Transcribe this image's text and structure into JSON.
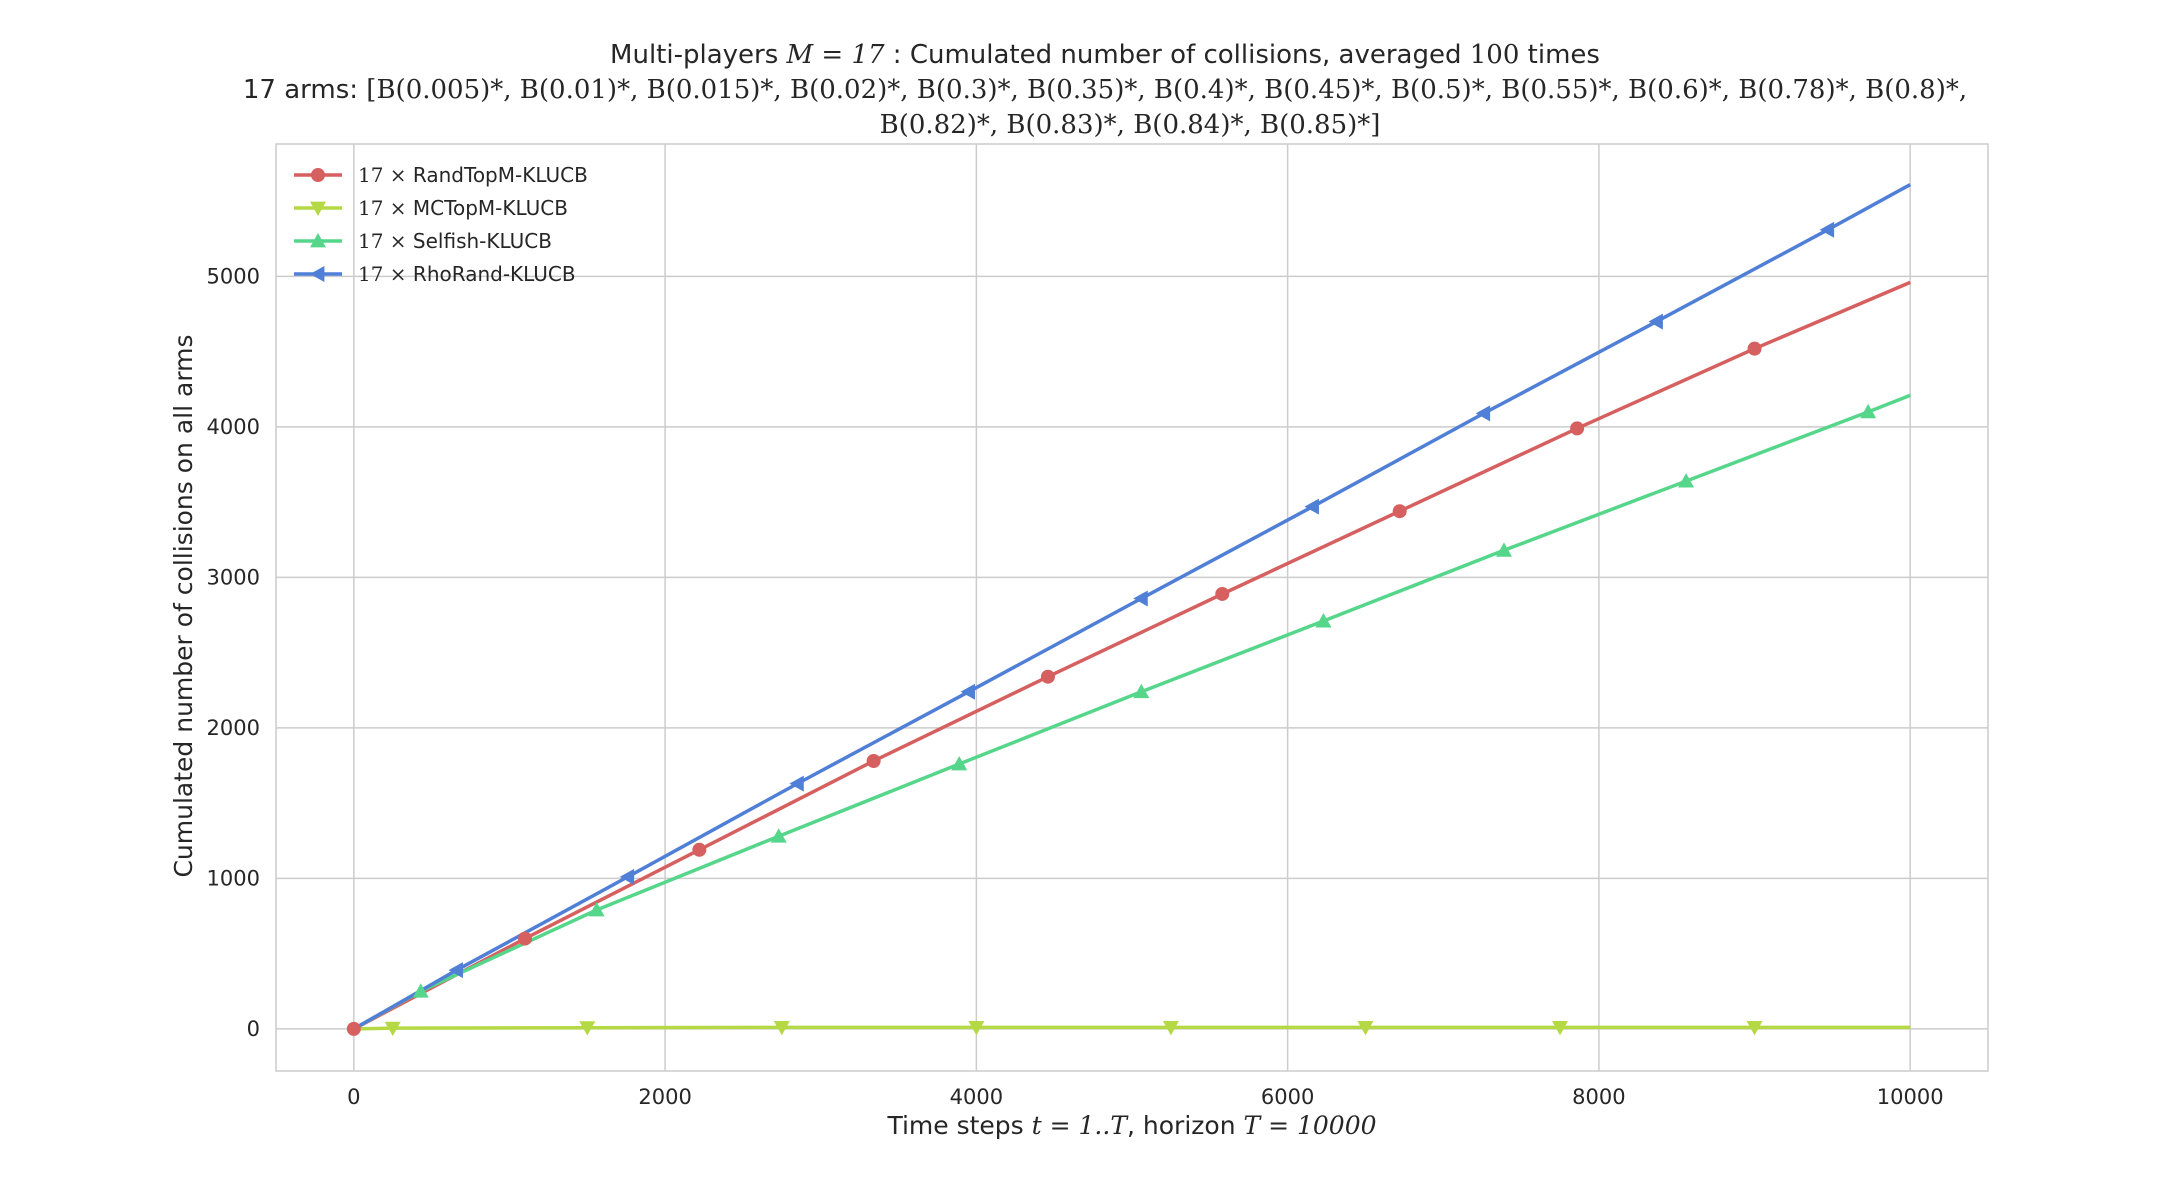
{
  "chart_data": {
    "type": "line",
    "title": "Multi-players M = 17 : Cumulated number of collisions, averaged 100 times",
    "title_parts": {
      "prefix": "Multi-players ",
      "m_expr": "M = 17",
      "middle": " : Cumulated number of collisions, averaged ",
      "n_expr": "100",
      "suffix": " times"
    },
    "subtitle_line1_prefix": "17 arms: ",
    "subtitle_line1_math": "[B(0.005)*, B(0.01)*, B(0.015)*, B(0.02)*, B(0.3)*, B(0.35)*, B(0.4)*, B(0.45)*, B(0.5)*, B(0.55)*, B(0.6)*, B(0.78)*, B(0.8)*,",
    "subtitle_line2_math": "B(0.82)*, B(0.83)*, B(0.84)*, B(0.85)*]",
    "xlabel_prefix": "Time steps ",
    "xlabel_t_expr": "t = 1..T",
    "xlabel_middle": ", horizon ",
    "xlabel_T_expr": "T = 10000",
    "ylabel": "Cumulated number of collisions on all arms",
    "xlim": [
      -500,
      10500
    ],
    "ylim": [
      -280,
      5880
    ],
    "xticks": [
      0,
      2000,
      4000,
      6000,
      8000,
      10000
    ],
    "yticks": [
      0,
      1000,
      2000,
      3000,
      4000,
      5000
    ],
    "grid": true,
    "legend_position": "top-left",
    "legend_prefix": "17 ×",
    "series": [
      {
        "name": "RandTopM-KLUCB",
        "color": "#d65f5f",
        "marker": "circle",
        "x": [
          0,
          1100,
          2220,
          3340,
          4460,
          5580,
          6720,
          7860,
          9000,
          10000
        ],
        "y": [
          0,
          600,
          1190,
          1780,
          2340,
          2890,
          3440,
          3990,
          4520,
          4960
        ]
      },
      {
        "name": "MCTopM-KLUCB",
        "color": "#b5d945",
        "marker": "triangle-down",
        "x": [
          0,
          250,
          1500,
          2750,
          4000,
          5250,
          6500,
          7750,
          9000,
          10000
        ],
        "y": [
          0,
          5,
          8,
          10,
          10,
          10,
          10,
          10,
          10,
          10
        ]
      },
      {
        "name": "Selfish-KLUCB",
        "color": "#55d68a",
        "marker": "triangle-up",
        "x": [
          0,
          430,
          1560,
          2730,
          3890,
          5060,
          6230,
          7390,
          8560,
          9730,
          10000
        ],
        "y": [
          0,
          250,
          790,
          1280,
          1760,
          2240,
          2710,
          3180,
          3640,
          4100,
          4210
        ]
      },
      {
        "name": "RhoRand-KLUCB",
        "color": "#4f7fd6",
        "marker": "triangle-left",
        "x": [
          0,
          660,
          1760,
          2850,
          3950,
          5060,
          6160,
          7260,
          8370,
          9470,
          10000
        ],
        "y": [
          0,
          390,
          1010,
          1630,
          2240,
          2860,
          3470,
          4090,
          4700,
          5310,
          5610
        ]
      }
    ]
  }
}
